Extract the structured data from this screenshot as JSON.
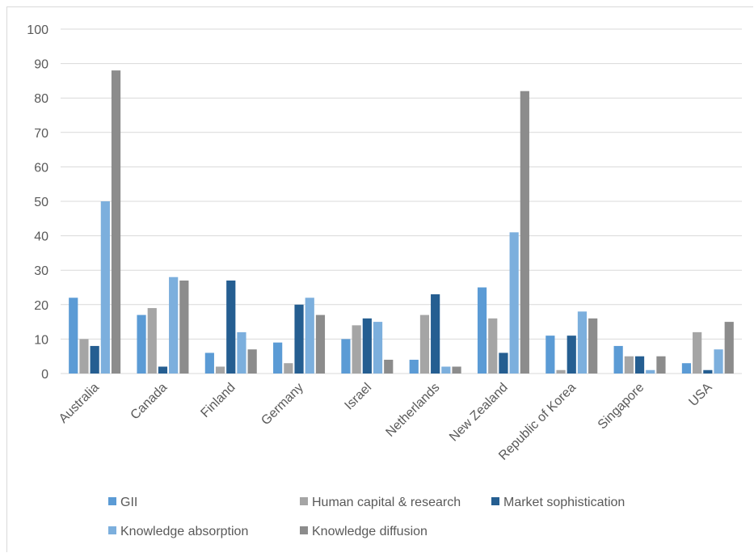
{
  "chart_data": {
    "type": "bar",
    "title": "",
    "xlabel": "",
    "ylabel": "",
    "ylim": [
      0,
      100
    ],
    "yticks": [
      0,
      10,
      20,
      30,
      40,
      50,
      60,
      70,
      80,
      90,
      100
    ],
    "grid": true,
    "legend_position": "bottom",
    "categories": [
      "Australia",
      "Canada",
      "Finland",
      "Germany",
      "Israel",
      "Netherlands",
      "New Zealand",
      "Republic of Korea",
      "Singapore",
      "USA"
    ],
    "series": [
      {
        "name": "GII",
        "color": "#5b9bd5",
        "values": [
          22,
          17,
          6,
          9,
          10,
          4,
          25,
          11,
          8,
          3
        ]
      },
      {
        "name": "Human capital & research",
        "color": "#a5a5a5",
        "values": [
          10,
          19,
          2,
          3,
          14,
          17,
          16,
          1,
          5,
          12
        ]
      },
      {
        "name": "Market sophistication",
        "color": "#255e91",
        "values": [
          8,
          2,
          27,
          20,
          16,
          23,
          6,
          11,
          5,
          1
        ]
      },
      {
        "name": "Knowledge absorption",
        "color": "#7cafdd",
        "values": [
          50,
          28,
          12,
          22,
          15,
          2,
          41,
          18,
          1,
          7
        ]
      },
      {
        "name": "Knowledge diffusion",
        "color": "#8c8c8c",
        "values": [
          88,
          27,
          7,
          17,
          4,
          2,
          82,
          16,
          5,
          15
        ]
      }
    ]
  }
}
